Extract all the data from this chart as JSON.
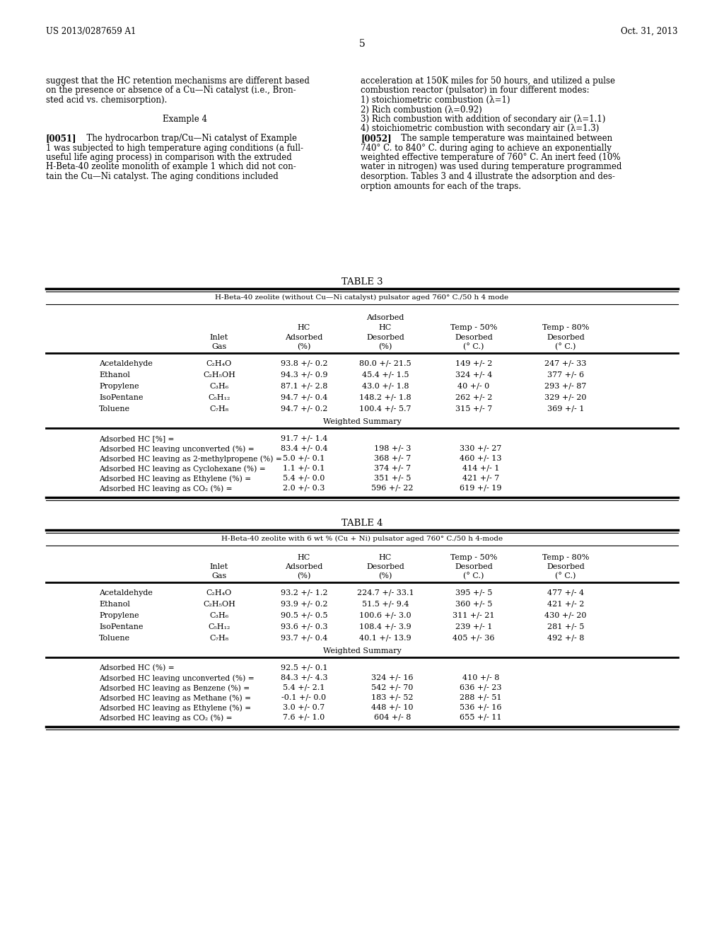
{
  "bg_color": "#ffffff",
  "page_width": 10.24,
  "page_height": 13.2,
  "header_left": "US 2013/0287659 A1",
  "header_right": "Oct. 31, 2013",
  "page_num": "5",
  "left_col": [
    "suggest that the HC retention mechanisms are different based",
    "on the presence or absence of a Cu—Ni catalyst (i.e., Bron-",
    "sted acid vs. chemisorption).",
    "",
    "Example 4",
    "",
    "[0051]   The hydrocarbon trap/Cu—Ni catalyst of Example",
    "1 was subjected to high temperature aging conditions (a full-",
    "useful life aging process) in comparison with the extruded",
    "H-Beta-40 zeolite monolith of example 1 which did not con-",
    "tain the Cu—Ni catalyst. The aging conditions included"
  ],
  "right_col": [
    "acceleration at 150K miles for 50 hours, and utilized a pulse",
    "combustion reactor (pulsator) in four different modes:",
    "1) stoichiometric combustion (λ=1)",
    "2) Rich combustion (λ=0.92)",
    "3) Rich combustion with addition of secondary air (λ=1.1)",
    "4) stoichiometric combustion with secondary air (λ=1.3)",
    "[0052]   The sample temperature was maintained between",
    "740° C. to 840° C. during aging to achieve an exponentially",
    "weighted effective temperature of 760° C. An inert feed (10%",
    "water in nitrogen) was used during temperature programmed",
    "desorption. Tables 3 and 4 illustrate the adsorption and des-",
    "orption amounts for each of the traps."
  ],
  "table3_title": "TABLE 3",
  "table3_subtitle": "H-Beta-40 zeolite (without Cu—Ni catalyst) pulsator aged 760° C./50 h 4 mode",
  "table3_data": [
    [
      "Acetaldehyde",
      "C₂H₄O",
      "93.8 +/- 0.2",
      "80.0 +/- 21.5",
      "149 +/- 2",
      "247 +/- 33"
    ],
    [
      "Ethanol",
      "C₂H₅OH",
      "94.3 +/- 0.9",
      "45.4 +/- 1.5",
      "324 +/- 4",
      "377 +/- 6"
    ],
    [
      "Propylene",
      "C₃H₆",
      "87.1 +/- 2.8",
      "43.0 +/- 1.8",
      "40 +/- 0",
      "293 +/- 87"
    ],
    [
      "IsoPentane",
      "C₅H₁₂",
      "94.7 +/- 0.4",
      "148.2 +/- 1.8",
      "262 +/- 2",
      "329 +/- 20"
    ],
    [
      "Toluene",
      "C₇H₈",
      "94.7 +/- 0.2",
      "100.4 +/- 5.7",
      "315 +/- 7",
      "369 +/- 1"
    ]
  ],
  "table3_summary": [
    [
      "Adsorbed HC [%] =",
      "91.7 +/- 1.4",
      "",
      ""
    ],
    [
      "Adsorbed HC leaving unconverted (%) =",
      "83.4 +/- 0.4",
      "198 +/- 3",
      "330 +/- 27"
    ],
    [
      "Adsorbed HC leaving as 2-methylpropene (%) =",
      "5.0 +/- 0.1",
      "368 +/- 7",
      "460 +/- 13"
    ],
    [
      "Adsorbed HC leaving as Cyclohexane (%) =",
      "1.1 +/- 0.1",
      "374 +/- 7",
      "414 +/- 1"
    ],
    [
      "Adsorbed HC leaving as Ethylene (%) =",
      "5.4 +/- 0.0",
      "351 +/- 5",
      "421 +/- 7"
    ],
    [
      "Adsorbed HC leaving as CO₂ (%) =",
      "2.0 +/- 0.3",
      "596 +/- 22",
      "619 +/- 19"
    ]
  ],
  "table4_title": "TABLE 4",
  "table4_subtitle": "H-Beta-40 zeolite with 6 wt % (Cu + Ni) pulsator aged 760° C./50 h 4-mode",
  "table4_data": [
    [
      "Acetaldehyde",
      "C₂H₄O",
      "93.2 +/- 1.2",
      "224.7 +/- 33.1",
      "395 +/- 5",
      "477 +/- 4"
    ],
    [
      "Ethanol",
      "C₂H₅OH",
      "93.9 +/- 0.2",
      "51.5 +/- 9.4",
      "360 +/- 5",
      "421 +/- 2"
    ],
    [
      "Propylene",
      "C₃H₆",
      "90.5 +/- 0.5",
      "100.6 +/- 3.0",
      "311 +/- 21",
      "430 +/- 20"
    ],
    [
      "IsoPentane",
      "C₅H₁₂",
      "93.6 +/- 0.3",
      "108.4 +/- 3.9",
      "239 +/- 1",
      "281 +/- 5"
    ],
    [
      "Toluene",
      "C₇H₈",
      "93.7 +/- 0.4",
      "40.1 +/- 13.9",
      "405 +/- 36",
      "492 +/- 8"
    ]
  ],
  "table4_summary": [
    [
      "Adsorbed HC (%) =",
      "92.5 +/- 0.1",
      "",
      ""
    ],
    [
      "Adsorbed HC leaving unconverted (%) =",
      "84.3 +/- 4.3",
      "324 +/- 16",
      "410 +/- 8"
    ],
    [
      "Adsorbed HC leaving as Benzene (%) =",
      "5.4 +/- 2.1",
      "542 +/- 70",
      "636 +/- 23"
    ],
    [
      "Adsorbed HC leaving as Methane (%) =",
      "-0.1 +/- 0.0",
      "183 +/- 52",
      "288 +/- 51"
    ],
    [
      "Adsorbed HC leaving as Ethylene (%) =",
      "3.0 +/- 0.7",
      "448 +/- 10",
      "536 +/- 16"
    ],
    [
      "Adsorbed HC leaving as CO₂ (%) =",
      "7.6 +/- 1.0",
      "604 +/- 8",
      "655 +/- 11"
    ]
  ]
}
